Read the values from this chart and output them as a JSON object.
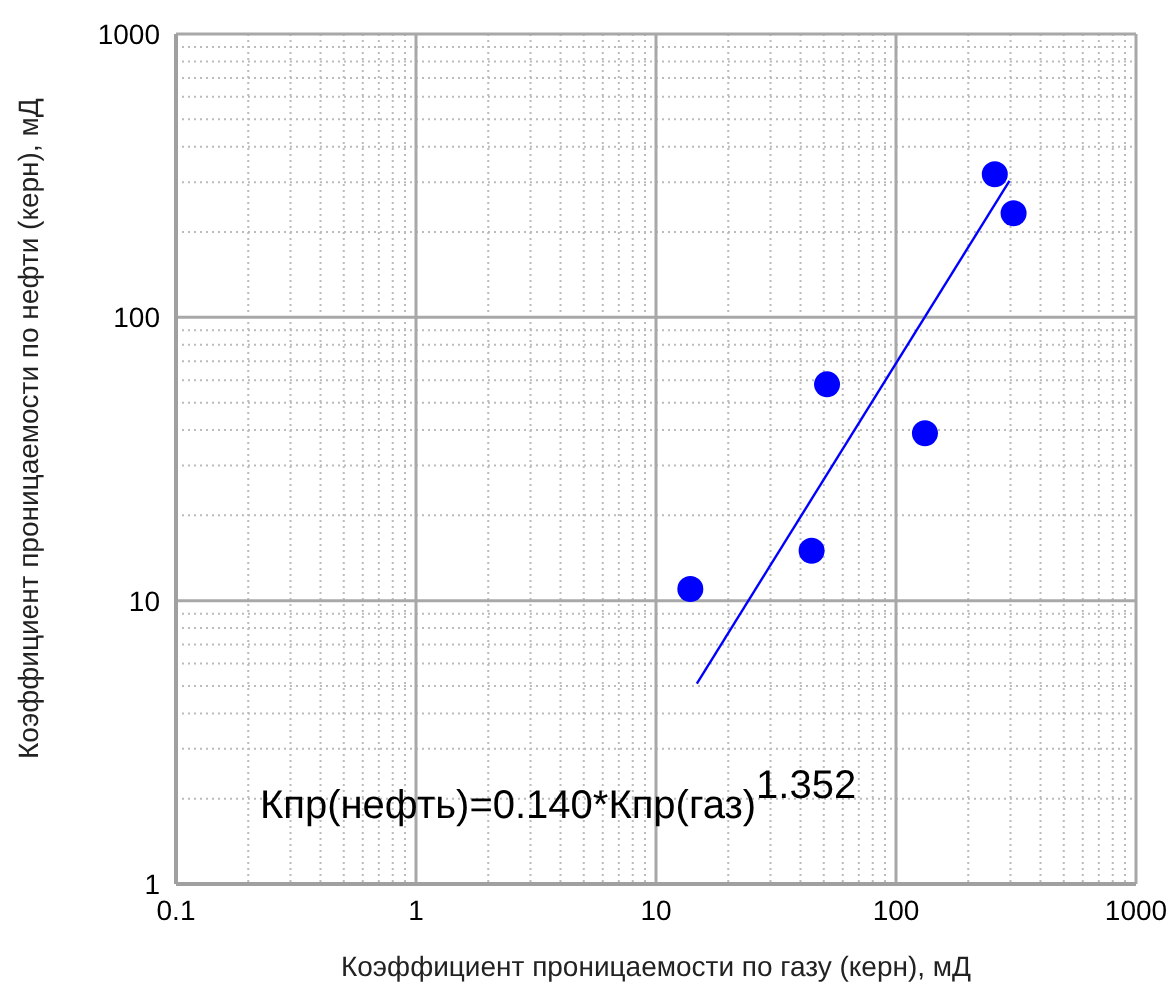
{
  "chart_data": {
    "type": "scatter",
    "xlabel": "Коэффициент проницаемости по газу (керн), мД",
    "ylabel": "Коэффициент проницаемости по нефти (керн), мД",
    "x": [
      13.9,
      44.5,
      51.6,
      132,
      258,
      309
    ],
    "series": [
      {
        "type": "scatter",
        "color": "#0000ff",
        "marker": "circle",
        "values": [
          11,
          15,
          58,
          39,
          320,
          233
        ]
      },
      {
        "type": "line",
        "color": "#0000ff",
        "marker": "none",
        "x": [
          14.8,
          297
        ],
        "values": [
          5.1,
          303
        ]
      }
    ],
    "xlim": [
      0.1,
      1000
    ],
    "ylim": [
      1,
      1000
    ],
    "xticks": [
      0.1,
      1,
      10,
      100,
      1000
    ],
    "yticks": [
      1,
      10,
      100,
      1000
    ],
    "log": "xy",
    "grid": true,
    "annotations": [
      "Кпр(нефть)=0.140*Кпр(газ)$^{1.352}$"
    ]
  }
}
